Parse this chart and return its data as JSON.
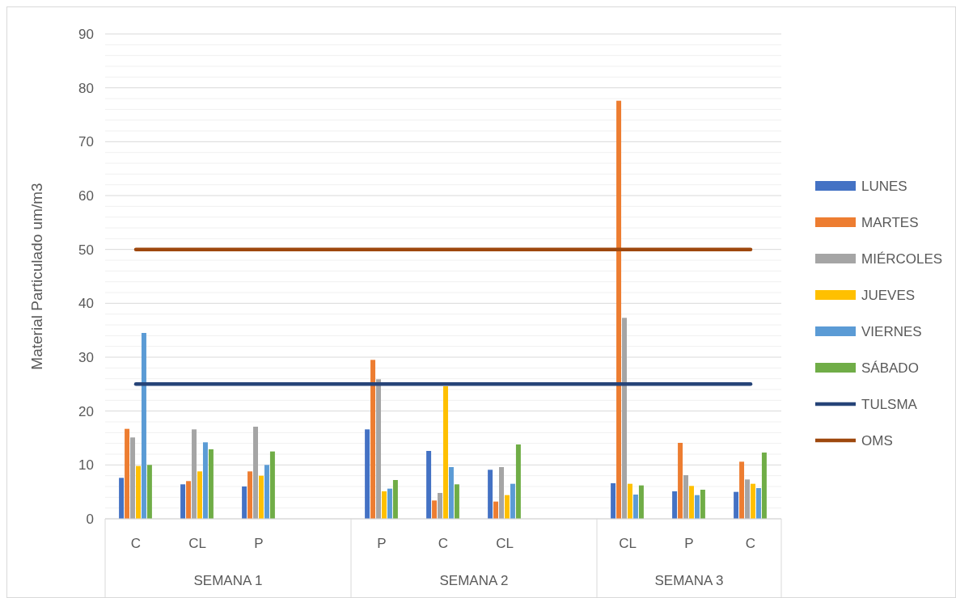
{
  "chart_data": {
    "type": "bar",
    "ylabel": "Material Particulado um/m3",
    "categories": [
      "C",
      "CL",
      "P",
      null,
      "P",
      "C",
      "CL",
      null,
      "CL",
      "P",
      "C"
    ],
    "series": [
      {
        "name": "LUNES",
        "color": "#4472c4",
        "values": [
          7.6,
          6.4,
          6.0,
          null,
          16.6,
          12.6,
          9.1,
          null,
          6.6,
          5.1,
          5.0
        ]
      },
      {
        "name": "MARTES",
        "color": "#ed7d31",
        "values": [
          16.7,
          7.0,
          8.8,
          null,
          29.5,
          3.4,
          3.2,
          null,
          77.6,
          14.1,
          10.6
        ]
      },
      {
        "name": "MIÉRCOLES",
        "color": "#a5a5a5",
        "values": [
          15.1,
          16.6,
          17.1,
          null,
          25.9,
          4.8,
          9.6,
          null,
          37.3,
          8.1,
          7.3
        ]
      },
      {
        "name": "JUEVES",
        "color": "#ffc000",
        "values": [
          9.8,
          8.8,
          8.0,
          null,
          5.1,
          24.6,
          4.4,
          null,
          6.5,
          6.1,
          6.5
        ]
      },
      {
        "name": "VIERNES",
        "color": "#5b9bd5",
        "values": [
          34.5,
          14.2,
          10.0,
          null,
          5.6,
          9.6,
          6.5,
          null,
          4.5,
          4.4,
          5.7
        ]
      },
      {
        "name": "SÁBADO",
        "color": "#70ad47",
        "values": [
          10.0,
          12.9,
          12.5,
          null,
          7.2,
          6.4,
          13.8,
          null,
          6.2,
          5.4,
          12.3
        ]
      }
    ],
    "ref_lines": [
      {
        "axis": "y",
        "value": 25,
        "label": "TULSMA",
        "color": "#264478"
      },
      {
        "axis": "y",
        "value": 50,
        "label": "OMS",
        "color": "#9e480e"
      }
    ],
    "annotations": [
      "SEMANA 1",
      "SEMANA 2",
      "SEMANA 3"
    ],
    "ylim": [
      0,
      90
    ],
    "yticks": [
      0,
      {
        "value": 2,
        "label": null
      },
      {
        "value": 4,
        "label": null
      },
      {
        "value": 6,
        "label": null
      },
      {
        "value": 8,
        "label": null
      },
      10,
      {
        "value": 12,
        "label": null
      },
      {
        "value": 14,
        "label": null
      },
      {
        "value": 16,
        "label": null
      },
      {
        "value": 18,
        "label": null
      },
      20,
      {
        "value": 22,
        "label": null
      },
      {
        "value": 24,
        "label": null
      },
      {
        "value": 26,
        "label": null
      },
      {
        "value": 28,
        "label": null
      },
      30,
      {
        "value": 32,
        "label": null
      },
      {
        "value": 34,
        "label": null
      },
      {
        "value": 36,
        "label": null
      },
      {
        "value": 38,
        "label": null
      },
      40,
      {
        "value": 42,
        "label": null
      },
      {
        "value": 44,
        "label": null
      },
      {
        "value": 46,
        "label": null
      },
      {
        "value": 48,
        "label": null
      },
      50,
      {
        "value": 52,
        "label": null
      },
      {
        "value": 54,
        "label": null
      },
      {
        "value": 56,
        "label": null
      },
      {
        "value": 58,
        "label": null
      },
      60,
      {
        "value": 62,
        "label": null
      },
      {
        "value": 64,
        "label": null
      },
      {
        "value": 66,
        "label": null
      },
      {
        "value": 68,
        "label": null
      },
      70,
      {
        "value": 72,
        "label": null
      },
      {
        "value": 74,
        "label": null
      },
      {
        "value": 76,
        "label": null
      },
      {
        "value": 78,
        "label": null
      },
      80,
      {
        "value": 82,
        "label": null
      },
      {
        "value": 84,
        "label": null
      },
      {
        "value": 86,
        "label": null
      },
      {
        "value": 88,
        "label": null
      },
      90
    ],
    "grid": true,
    "legend": "right"
  }
}
